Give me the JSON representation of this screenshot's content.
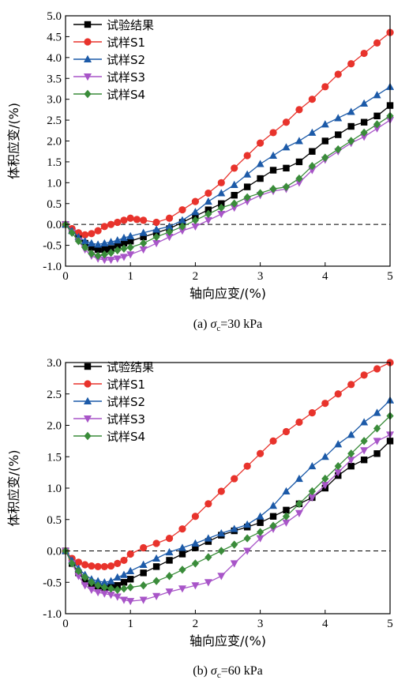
{
  "chart_data": [
    {
      "type": "line",
      "caption": {
        "prefix": "(a) ",
        "symbol": "σ",
        "sub": "c",
        "suffix": "=30 kPa"
      },
      "xlabel": "轴向应变/(%)",
      "ylabel": "体积应变/(%)",
      "xlim": [
        0,
        5
      ],
      "ylim": [
        -1.0,
        5.0
      ],
      "xticks": [
        0,
        1,
        2,
        3,
        4,
        5
      ],
      "yticks": [
        -1.0,
        -0.5,
        0.0,
        0.5,
        1.0,
        1.5,
        2.0,
        2.5,
        3.0,
        3.5,
        4.0,
        4.5,
        5.0
      ],
      "ytick_decimals": 1,
      "zero_line": true,
      "legend_position": "top-left",
      "series": [
        {
          "name": "试验结果",
          "color": "#000000",
          "marker": "square",
          "x": [
            0,
            0.1,
            0.2,
            0.3,
            0.4,
            0.5,
            0.6,
            0.7,
            0.8,
            0.9,
            1.0,
            1.2,
            1.4,
            1.6,
            1.8,
            2.0,
            2.2,
            2.4,
            2.6,
            2.8,
            3.0,
            3.2,
            3.4,
            3.6,
            3.8,
            4.0,
            4.2,
            4.4,
            4.6,
            4.8,
            5.0
          ],
          "y": [
            0,
            -0.15,
            -0.3,
            -0.45,
            -0.55,
            -0.6,
            -0.6,
            -0.58,
            -0.5,
            -0.45,
            -0.4,
            -0.3,
            -0.2,
            -0.1,
            0.05,
            0.2,
            0.35,
            0.5,
            0.7,
            0.9,
            1.1,
            1.3,
            1.35,
            1.5,
            1.75,
            2.0,
            2.15,
            2.35,
            2.45,
            2.6,
            2.85
          ]
        },
        {
          "name": "试样S1",
          "color": "#e8332c",
          "marker": "circle",
          "x": [
            0,
            0.1,
            0.2,
            0.3,
            0.4,
            0.5,
            0.6,
            0.7,
            0.8,
            0.9,
            1.0,
            1.1,
            1.2,
            1.4,
            1.6,
            1.8,
            2.0,
            2.2,
            2.4,
            2.6,
            2.8,
            3.0,
            3.2,
            3.4,
            3.6,
            3.8,
            4.0,
            4.2,
            4.4,
            4.6,
            4.8,
            5.0
          ],
          "y": [
            0,
            -0.1,
            -0.2,
            -0.25,
            -0.22,
            -0.15,
            -0.05,
            0.0,
            0.05,
            0.1,
            0.15,
            0.12,
            0.1,
            0.05,
            0.15,
            0.35,
            0.55,
            0.75,
            1.0,
            1.35,
            1.65,
            1.95,
            2.2,
            2.45,
            2.75,
            3.0,
            3.3,
            3.6,
            3.85,
            4.1,
            4.35,
            4.6
          ]
        },
        {
          "name": "试样S2",
          "color": "#1c5aa8",
          "marker": "triangle-up",
          "x": [
            0,
            0.1,
            0.2,
            0.3,
            0.4,
            0.5,
            0.6,
            0.7,
            0.8,
            0.9,
            1.0,
            1.2,
            1.4,
            1.6,
            1.8,
            2.0,
            2.2,
            2.4,
            2.6,
            2.8,
            3.0,
            3.2,
            3.4,
            3.6,
            3.8,
            4.0,
            4.2,
            4.4,
            4.6,
            4.8,
            5.0
          ],
          "y": [
            0,
            -0.15,
            -0.3,
            -0.4,
            -0.45,
            -0.48,
            -0.45,
            -0.42,
            -0.38,
            -0.32,
            -0.28,
            -0.2,
            -0.12,
            -0.05,
            0.1,
            0.3,
            0.55,
            0.75,
            0.95,
            1.2,
            1.45,
            1.65,
            1.85,
            2.0,
            2.2,
            2.4,
            2.55,
            2.7,
            2.9,
            3.1,
            3.3
          ]
        },
        {
          "name": "试样S3",
          "color": "#a855c8",
          "marker": "triangle-down",
          "x": [
            0,
            0.1,
            0.2,
            0.3,
            0.4,
            0.5,
            0.6,
            0.7,
            0.8,
            0.9,
            1.0,
            1.2,
            1.4,
            1.6,
            1.8,
            2.0,
            2.2,
            2.4,
            2.6,
            2.8,
            3.0,
            3.2,
            3.4,
            3.6,
            3.8,
            4.0,
            4.2,
            4.4,
            4.6,
            4.8,
            5.0
          ],
          "y": [
            0,
            -0.2,
            -0.4,
            -0.6,
            -0.75,
            -0.82,
            -0.85,
            -0.85,
            -0.82,
            -0.78,
            -0.72,
            -0.6,
            -0.45,
            -0.3,
            -0.15,
            -0.05,
            0.1,
            0.25,
            0.4,
            0.55,
            0.7,
            0.8,
            0.85,
            1.0,
            1.3,
            1.55,
            1.75,
            1.95,
            2.1,
            2.3,
            2.5
          ]
        },
        {
          "name": "试样S4",
          "color": "#3a8c3a",
          "marker": "diamond",
          "x": [
            0,
            0.1,
            0.2,
            0.3,
            0.4,
            0.5,
            0.6,
            0.7,
            0.8,
            0.9,
            1.0,
            1.2,
            1.4,
            1.6,
            1.8,
            2.0,
            2.2,
            2.4,
            2.6,
            2.8,
            3.0,
            3.2,
            3.4,
            3.6,
            3.8,
            4.0,
            4.2,
            4.4,
            4.6,
            4.8,
            5.0
          ],
          "y": [
            0,
            -0.2,
            -0.4,
            -0.55,
            -0.7,
            -0.75,
            -0.72,
            -0.68,
            -0.62,
            -0.58,
            -0.55,
            -0.45,
            -0.3,
            -0.18,
            -0.05,
            0.1,
            0.25,
            0.4,
            0.5,
            0.65,
            0.75,
            0.85,
            0.9,
            1.1,
            1.4,
            1.6,
            1.8,
            2.0,
            2.2,
            2.4,
            2.6
          ]
        }
      ]
    },
    {
      "type": "line",
      "caption": {
        "prefix": "(b) ",
        "symbol": "σ",
        "sub": "c",
        "suffix": "=60 kPa"
      },
      "xlabel": "轴向应变/(%)",
      "ylabel": "体积应变/(%)",
      "xlim": [
        0,
        5
      ],
      "ylim": [
        -1.0,
        3.0
      ],
      "xticks": [
        0,
        1,
        2,
        3,
        4,
        5
      ],
      "yticks": [
        -1.0,
        -0.5,
        0.0,
        0.5,
        1.0,
        1.5,
        2.0,
        2.5,
        3.0
      ],
      "ytick_decimals": 1,
      "zero_line": true,
      "legend_position": "top-left",
      "series": [
        {
          "name": "试验结果",
          "color": "#000000",
          "marker": "square",
          "x": [
            0,
            0.1,
            0.2,
            0.3,
            0.4,
            0.5,
            0.6,
            0.7,
            0.8,
            0.9,
            1.0,
            1.2,
            1.4,
            1.6,
            1.8,
            2.0,
            2.2,
            2.4,
            2.6,
            2.8,
            3.0,
            3.2,
            3.4,
            3.6,
            3.8,
            4.0,
            4.2,
            4.4,
            4.6,
            4.8,
            5.0
          ],
          "y": [
            0,
            -0.2,
            -0.35,
            -0.48,
            -0.55,
            -0.58,
            -0.6,
            -0.58,
            -0.55,
            -0.5,
            -0.45,
            -0.35,
            -0.25,
            -0.15,
            -0.05,
            0.05,
            0.15,
            0.25,
            0.32,
            0.38,
            0.45,
            0.55,
            0.65,
            0.75,
            0.85,
            1.0,
            1.2,
            1.35,
            1.45,
            1.55,
            1.75
          ]
        },
        {
          "name": "试样S1",
          "color": "#e8332c",
          "marker": "circle",
          "x": [
            0,
            0.1,
            0.2,
            0.3,
            0.4,
            0.5,
            0.6,
            0.7,
            0.8,
            0.9,
            1.0,
            1.2,
            1.4,
            1.6,
            1.8,
            2.0,
            2.2,
            2.4,
            2.6,
            2.8,
            3.0,
            3.2,
            3.4,
            3.6,
            3.8,
            4.0,
            4.2,
            4.4,
            4.6,
            4.8,
            5.0
          ],
          "y": [
            0,
            -0.12,
            -0.18,
            -0.22,
            -0.24,
            -0.25,
            -0.25,
            -0.24,
            -0.2,
            -0.15,
            -0.05,
            0.05,
            0.12,
            0.2,
            0.35,
            0.55,
            0.75,
            0.95,
            1.15,
            1.35,
            1.55,
            1.75,
            1.9,
            2.05,
            2.2,
            2.35,
            2.5,
            2.65,
            2.8,
            2.9,
            3.0
          ]
        },
        {
          "name": "试样S2",
          "color": "#1c5aa8",
          "marker": "triangle-up",
          "x": [
            0,
            0.1,
            0.2,
            0.3,
            0.4,
            0.5,
            0.6,
            0.7,
            0.8,
            0.9,
            1.0,
            1.2,
            1.4,
            1.6,
            1.8,
            2.0,
            2.2,
            2.4,
            2.6,
            2.8,
            3.0,
            3.2,
            3.4,
            3.6,
            3.8,
            4.0,
            4.2,
            4.4,
            4.6,
            4.8,
            5.0
          ],
          "y": [
            0,
            -0.15,
            -0.28,
            -0.38,
            -0.45,
            -0.48,
            -0.5,
            -0.48,
            -0.42,
            -0.38,
            -0.32,
            -0.22,
            -0.12,
            -0.02,
            0.05,
            0.12,
            0.2,
            0.28,
            0.35,
            0.42,
            0.55,
            0.72,
            0.95,
            1.15,
            1.35,
            1.5,
            1.7,
            1.85,
            2.05,
            2.2,
            2.4
          ]
        },
        {
          "name": "试样S3",
          "color": "#a855c8",
          "marker": "triangle-down",
          "x": [
            0,
            0.1,
            0.2,
            0.3,
            0.4,
            0.5,
            0.6,
            0.7,
            0.8,
            0.9,
            1.0,
            1.2,
            1.4,
            1.6,
            1.8,
            2.0,
            2.2,
            2.4,
            2.6,
            2.8,
            3.0,
            3.2,
            3.4,
            3.6,
            3.8,
            4.0,
            4.2,
            4.4,
            4.6,
            4.8,
            5.0
          ],
          "y": [
            0,
            -0.2,
            -0.4,
            -0.55,
            -0.62,
            -0.66,
            -0.68,
            -0.7,
            -0.73,
            -0.78,
            -0.8,
            -0.78,
            -0.72,
            -0.65,
            -0.6,
            -0.55,
            -0.5,
            -0.4,
            -0.2,
            0.0,
            0.2,
            0.35,
            0.45,
            0.6,
            0.85,
            1.05,
            1.25,
            1.45,
            1.6,
            1.75,
            1.85
          ]
        },
        {
          "name": "试样S4",
          "color": "#3a8c3a",
          "marker": "diamond",
          "x": [
            0,
            0.1,
            0.2,
            0.3,
            0.4,
            0.5,
            0.6,
            0.7,
            0.8,
            0.9,
            1.0,
            1.2,
            1.4,
            1.6,
            1.8,
            2.0,
            2.2,
            2.4,
            2.6,
            2.8,
            3.0,
            3.2,
            3.4,
            3.6,
            3.8,
            4.0,
            4.2,
            4.4,
            4.6,
            4.8,
            5.0
          ],
          "y": [
            0,
            -0.2,
            -0.32,
            -0.42,
            -0.5,
            -0.55,
            -0.58,
            -0.6,
            -0.62,
            -0.6,
            -0.58,
            -0.55,
            -0.48,
            -0.4,
            -0.3,
            -0.2,
            -0.1,
            0.0,
            0.1,
            0.2,
            0.3,
            0.4,
            0.55,
            0.75,
            0.95,
            1.15,
            1.35,
            1.55,
            1.75,
            1.95,
            2.15
          ]
        }
      ]
    }
  ]
}
